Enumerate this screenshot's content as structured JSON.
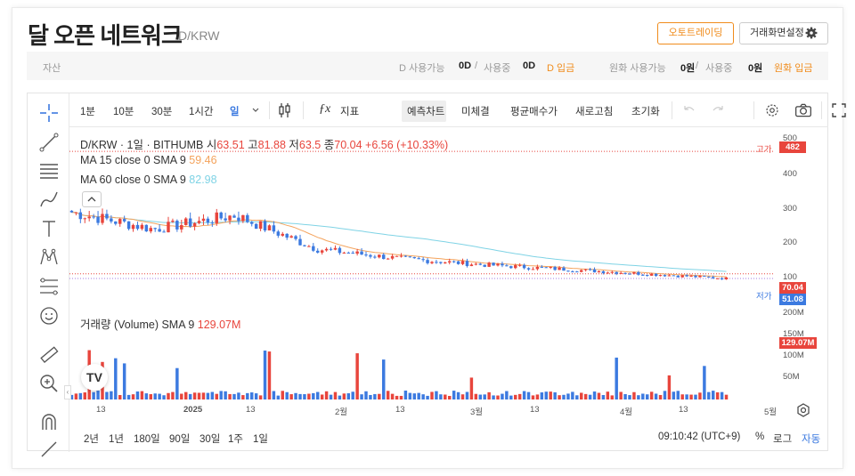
{
  "header": {
    "title": "달 오픈 네트워크",
    "pair": "D/KRW",
    "auto_trade_label": "오토트레이딩",
    "settings_label": "거래화면설정"
  },
  "asset": {
    "label": "자산",
    "d_avail_label": "D 사용가능",
    "d_avail": "0D",
    "slash": "/",
    "d_used_label": "사용중",
    "d_used": "0D",
    "d_deposit": "D 입금",
    "krw_avail_label": "원화 사용가능",
    "krw_avail": "0원",
    "krw_used_label": "사용중",
    "krw_used": "0원",
    "krw_deposit": "원화 입금"
  },
  "toolbar": {
    "intervals": [
      "1분",
      "10분",
      "30분",
      "1시간",
      "일"
    ],
    "indicator": "지표",
    "prediction": "예측차트",
    "mini": "미체결",
    "ma": "평균매수가",
    "refresh": "새로고침",
    "reset": "초기화"
  },
  "legend": {
    "main_prefix": "D/KRW · 1일 · BITHUMB",
    "o_label": "시",
    "o": "63.51",
    "h_label": "고",
    "h": "81.88",
    "l_label": "저",
    "l": "63.5",
    "c_label": "종",
    "c": "70.04",
    "change": "+6.56 (+10.33%)",
    "ma15": "MA 15 close 0 SMA 9",
    "ma15_val": "59.46",
    "ma60": "MA 60 close 0 SMA 9",
    "ma60_val": "82.98",
    "vol": "거래량 (Volume) SMA 9",
    "vol_val": "129.07M"
  },
  "price_axis": {
    "ticks": [
      "500",
      "400",
      "300",
      "200",
      "100",
      "200M",
      "150M",
      "100M",
      "50M"
    ],
    "high_label": "고가",
    "high_value": "482",
    "low_label": "저가",
    "close_tag": "70.04",
    "ma_tag": "51.08",
    "vol_tag": "129.07M"
  },
  "time_axis": {
    "ticks": [
      "13",
      "2025",
      "13",
      "2월",
      "13",
      "3월",
      "13",
      "4월",
      "13",
      "5월"
    ]
  },
  "bottombar": {
    "ranges": [
      "2년",
      "1년",
      "180일",
      "90일",
      "30일",
      "1주",
      "1일"
    ],
    "time": "09:10:42 (UTC+9)",
    "percent": "%",
    "log": "로그",
    "auto": "자동"
  },
  "colors": {
    "up": "#e8453c",
    "down": "#3c7ae0",
    "ma15": "#f4a35c",
    "ma60": "#7fd3e5",
    "accent": "#f08c1c"
  },
  "chart_data": {
    "type": "candlestick",
    "x": [
      "2024-12-13",
      "2025-01-01",
      "2025-01-13",
      "2025-02-01",
      "2025-02-13",
      "2025-03-01",
      "2025-03-13",
      "2025-04-01",
      "2025-04-13"
    ],
    "close": [
      270,
      215,
      260,
      150,
      120,
      100,
      85,
      70,
      55
    ],
    "last": {
      "open": 63.51,
      "high": 81.88,
      "low": 63.5,
      "close": 70.04
    },
    "volume_last_ma": "129.07M"
  }
}
